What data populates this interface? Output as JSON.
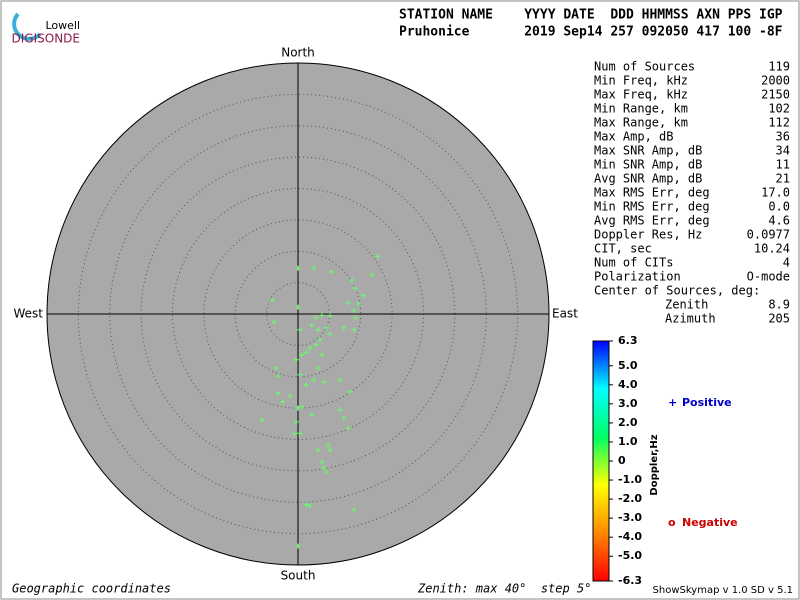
{
  "logo": {
    "top": "Lowell",
    "bottom": "DIGISONDE"
  },
  "header": {
    "line1": "STATION NAME    YYYY DATE  DDD HHMMSS AXN PPS IGP",
    "line2": "Pruhonice       2019 Sep14 257 092050 417 100 -8F"
  },
  "stats": [
    {
      "label": "Num of Sources",
      "value": "119"
    },
    {
      "label": "Min Freq, kHz",
      "value": "2000"
    },
    {
      "label": "Max Freq, kHz",
      "value": "2150"
    },
    {
      "label": "Min Range, km",
      "value": "102"
    },
    {
      "label": "Max Range, km",
      "value": "112"
    },
    {
      "label": "Max Amp, dB",
      "value": "36"
    },
    {
      "label": "Max SNR Amp, dB",
      "value": "34"
    },
    {
      "label": "Min SNR Amp, dB",
      "value": "11"
    },
    {
      "label": "Avg SNR Amp, dB",
      "value": "21"
    },
    {
      "label": "Max RMS Err, deg",
      "value": "17.0"
    },
    {
      "label": "Min RMS Err, deg",
      "value": "0.0"
    },
    {
      "label": "Avg RMS Err, deg",
      "value": "4.6"
    },
    {
      "label": "Doppler Res, Hz",
      "value": "0.0977"
    },
    {
      "label": "CIT, sec",
      "value": "10.24"
    },
    {
      "label": "Num of CITs",
      "value": "4"
    },
    {
      "label": "Polarization",
      "value": "O-mode"
    }
  ],
  "center": {
    "title": "Center of Sources, deg:",
    "rows": [
      {
        "label": "Zenith",
        "value": "8.9"
      },
      {
        "label": "Azimuth",
        "value": "205"
      }
    ]
  },
  "footer": {
    "left": "Geographic coordinates",
    "middle": "Zenith: max 40°  step 5°",
    "right": "ShowSkymap v 1.0   SD v 5.1"
  },
  "chart_data": {
    "type": "scatter",
    "directions": {
      "north": "North",
      "south": "South",
      "east": "East",
      "west": "West"
    },
    "xlim": [
      -40,
      40
    ],
    "ylim": [
      -40,
      40
    ],
    "rticks": [
      5,
      10,
      15,
      20,
      25,
      30,
      35,
      40
    ],
    "color": "#66ff66",
    "x": [
      12.7,
      11.8,
      8.6,
      9.1,
      0,
      2.5,
      5.3,
      -4.1,
      0,
      10.4,
      9.6,
      8.9,
      8.0,
      9.2,
      -3.8,
      2.9,
      3.8,
      5.1,
      2.2,
      3.2,
      4.5,
      5.1,
      3.5,
      2.9,
      1.9,
      0.3,
      7.3,
      8.9,
      0.6,
      1.3,
      3.8,
      -0.3,
      -3.2,
      -3.5,
      0.3,
      3.2,
      2.5,
      1.3,
      4.1,
      6.7,
      8.3,
      -3.2,
      -2.4,
      -1.3,
      0,
      0.6,
      -0.3,
      2.2,
      6.7,
      -5.7,
      0.3,
      -0.6,
      7.3,
      8.0,
      4.8,
      5.1,
      3.2,
      3.8,
      4.1,
      4.5,
      1.3,
      1.9,
      8.9,
      0
    ],
    "y": [
      9.2,
      6.2,
      5.4,
      4.1,
      7.3,
      7.3,
      6.7,
      2.2,
      1.1,
      2.9,
      1.6,
      0.6,
      1.8,
      -0.6,
      -1.3,
      -0.6,
      -0.2,
      -0.3,
      -1.8,
      -2.5,
      -2.2,
      -3.2,
      -4.1,
      -4.9,
      -5.4,
      -2.5,
      -2.2,
      -2.5,
      -6.5,
      -6.1,
      -6.5,
      -7.3,
      -9.9,
      -8.6,
      -9.7,
      -8.6,
      -10.5,
      -11.3,
      -10.8,
      -10.5,
      -12.4,
      -12.6,
      -14.0,
      -13.1,
      -15.0,
      -14.8,
      -17.2,
      -16.1,
      -15.3,
      -16.9,
      -19.0,
      -19.1,
      -16.6,
      -18.2,
      -20.9,
      -21.7,
      -21.7,
      -23.6,
      -24.5,
      -25.2,
      -30.4,
      -30.6,
      -31.2,
      -37.0
    ],
    "colorbar": {
      "label": "Doppler,Hz",
      "clim": [
        -6.3,
        6.3
      ],
      "colors": [
        "#ff0000",
        "#ff8800",
        "#ffff00",
        "#00ff66",
        "#00ffff",
        "#0000ff"
      ],
      "ticks": [
        6.3,
        {
          "value": 5,
          "label": "5.0"
        },
        {
          "value": 4,
          "label": "4.0"
        },
        {
          "value": 3,
          "label": "3.0"
        },
        {
          "value": 2,
          "label": "2.0"
        },
        {
          "value": 1,
          "label": "1.0"
        },
        0,
        {
          "value": -1,
          "label": "-1.0"
        },
        {
          "value": -2,
          "label": "-2.0"
        },
        {
          "value": -3,
          "label": "-3.0"
        },
        {
          "value": -4,
          "label": "-4.0"
        },
        {
          "value": -5,
          "label": "-5.0"
        },
        -6.3
      ]
    },
    "legend": [
      {
        "symbol": "+",
        "name": "Positive",
        "color": "#0000cc"
      },
      {
        "symbol": "o",
        "name": "Negative",
        "color": "#cc0000"
      }
    ]
  }
}
